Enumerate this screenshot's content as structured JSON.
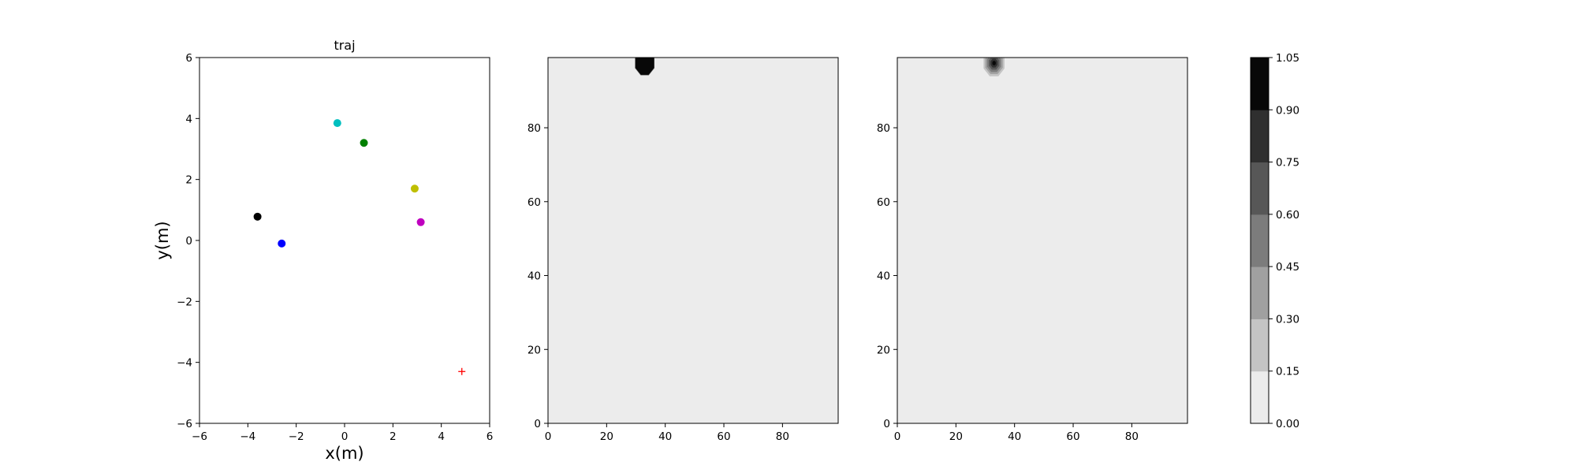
{
  "chart_data": [
    {
      "type": "scatter",
      "title": "traj",
      "xlabel": "x(m)",
      "ylabel": "y(m)",
      "xlim": [
        -6,
        6
      ],
      "ylim": [
        -6,
        6
      ],
      "xticks": [
        -6,
        -4,
        -2,
        0,
        2,
        4,
        6
      ],
      "yticks": [
        -6,
        -4,
        -2,
        0,
        2,
        4,
        6
      ],
      "tick_labels": [
        "−6",
        "−4",
        "−2",
        "0",
        "2",
        "4",
        "6"
      ],
      "grid": false,
      "points": [
        {
          "x": -3.6,
          "y": 0.78,
          "color": "#000000",
          "marker": "circle"
        },
        {
          "x": -2.6,
          "y": -0.1,
          "color": "#0000ff",
          "marker": "circle"
        },
        {
          "x": -0.3,
          "y": 3.85,
          "color": "#00bfbf",
          "marker": "circle"
        },
        {
          "x": 0.8,
          "y": 3.2,
          "color": "#008000",
          "marker": "circle"
        },
        {
          "x": 2.9,
          "y": 1.7,
          "color": "#bfbf00",
          "marker": "circle"
        },
        {
          "x": 3.15,
          "y": 0.6,
          "color": "#bf00bf",
          "marker": "circle"
        },
        {
          "x": 4.85,
          "y": -4.3,
          "color": "#ff0000",
          "marker": "plus"
        }
      ]
    },
    {
      "type": "heatmap",
      "title": "",
      "xlim": [
        0,
        99
      ],
      "ylim": [
        0,
        99
      ],
      "xticks": [
        0,
        20,
        40,
        60,
        80
      ],
      "yticks": [
        0,
        20,
        40,
        60,
        80
      ],
      "background_level": 0.0,
      "blob": {
        "cx": 33,
        "cy": 97.5,
        "radius": 3.5,
        "level": 1.05
      }
    },
    {
      "type": "heatmap",
      "title": "",
      "xlim": [
        0,
        99
      ],
      "ylim": [
        0,
        99
      ],
      "xticks": [
        0,
        20,
        40,
        60,
        80
      ],
      "yticks": [
        0,
        20,
        40,
        60,
        80
      ],
      "background_level": 0.0,
      "blob": {
        "cx": 33,
        "cy": 97.5,
        "radius": 4.5,
        "level": 1.0,
        "graded": true
      }
    }
  ],
  "colorbar": {
    "range": [
      0,
      1.05
    ],
    "ticks": [
      "0.00",
      "0.15",
      "0.30",
      "0.45",
      "0.60",
      "0.75",
      "0.90",
      "1.05"
    ],
    "colors": [
      "#ececec",
      "#c4c4c4",
      "#a0a0a0",
      "#7c7c7c",
      "#575757",
      "#2f2f2f",
      "#080808"
    ]
  }
}
